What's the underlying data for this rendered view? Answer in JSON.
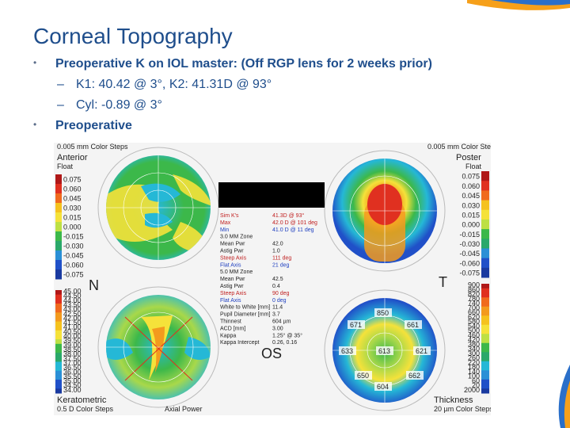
{
  "slide": {
    "title": "Corneal Topography",
    "bullets": [
      {
        "level": 1,
        "text": "Preoperative K on IOL master:  (Off RGP lens for 2 weeks prior)"
      },
      {
        "level": 2,
        "text": "K1: 40.42 @ 3°, K2: 41.31D @ 93°"
      },
      {
        "level": 2,
        "text": "Cyl: -0.89 @ 3°"
      },
      {
        "level": 1,
        "text": "Preoperative"
      }
    ]
  },
  "topography": {
    "anterior_label": "Anterior",
    "anterior_sub": "Float",
    "posterior_label": "Poster",
    "posterior_sub": "Float",
    "top_scale_header": "0.005 mm Color Steps",
    "keratometric_label": "Keratometric",
    "keratometric_sub": "0.5 D Color Steps",
    "thickness_label": "Thickness",
    "thickness_sub": "20 µm Color Steps",
    "axial_label": "Axial Power",
    "nasal_marker": "N",
    "temporal_marker": "T",
    "eye_label": "OS",
    "float_scale": [
      "0.075",
      "0.060",
      "0.045",
      "0.030",
      "0.015",
      "0.000",
      "-0.015",
      "-0.030",
      "-0.045",
      "-0.060",
      "-0.075"
    ],
    "k_scale": [
      "45.00",
      "44.50",
      "44.00",
      "43.50",
      "43.00",
      "42.50",
      "42.00",
      "41.50",
      "41.00",
      "40.50",
      "40.00",
      "39.50",
      "39.00",
      "38.50",
      "38.00",
      "37.50",
      "37.00",
      "36.50",
      "36.00",
      "35.50",
      "35.00",
      "34.50",
      "34.00"
    ],
    "thickness_scale": [
      "900",
      "860",
      "820",
      "780",
      "740",
      "700",
      "660",
      "620",
      "580",
      "540",
      "500",
      "460",
      "420",
      "380",
      "340",
      "300",
      "260",
      "220",
      "180",
      "140",
      "100",
      "60",
      "20",
      "2000"
    ],
    "thickness_values": [
      "850",
      "671",
      "661",
      "633",
      "613",
      "621",
      "650",
      "604",
      "662"
    ],
    "stats": [
      {
        "label": "Sim K's",
        "value": "41.3D @ 93°",
        "color": "#c02020"
      },
      {
        "label": "Max",
        "value": "42.0 D @ 101 deg",
        "color": "#c02020"
      },
      {
        "label": "Min",
        "value": "41.0 D @ 11 deg",
        "color": "#2040c0"
      },
      {
        "label": "3.0 MM Zone",
        "value": "",
        "color": "#222222"
      },
      {
        "label": "Mean Pwr",
        "value": "42.0",
        "color": "#222222"
      },
      {
        "label": "Astig Pwr",
        "value": "1.0",
        "color": "#222222"
      },
      {
        "label": "Steep Axis",
        "value": "111 deg",
        "color": "#c02020"
      },
      {
        "label": "Flat Axis",
        "value": "21 deg",
        "color": "#2040c0"
      },
      {
        "label": "5.0 MM Zone",
        "value": "",
        "color": "#222222"
      },
      {
        "label": "Mean Pwr",
        "value": "42.5",
        "color": "#222222"
      },
      {
        "label": "Astig Pwr",
        "value": "0.4",
        "color": "#222222"
      },
      {
        "label": "Steep Axis",
        "value": "90 deg",
        "color": "#c02020"
      },
      {
        "label": "Flat Axis",
        "value": "0 deg",
        "color": "#2040c0"
      },
      {
        "label": "White to White [mm]",
        "value": "11.4",
        "color": "#222222"
      },
      {
        "label": "Pupil Diameter [mm]",
        "value": "3.7",
        "color": "#222222"
      },
      {
        "label": "Thinnest",
        "value": "604 µm",
        "color": "#222222"
      },
      {
        "label": "ACD [mm]",
        "value": "3.00",
        "color": "#222222"
      },
      {
        "label": "Kappa",
        "value": "1.25° @ 35°",
        "color": "#222222"
      },
      {
        "label": "Kappa Intercept",
        "value": "0.26, 0.16",
        "color": "#222222"
      }
    ],
    "colors": {
      "title_blue": "#1f4e8c",
      "map_red": "#e03020",
      "map_orange": "#f39a1e",
      "map_yellow": "#f5e23a",
      "map_green": "#3cb84a",
      "map_cyan": "#25b8d6",
      "map_blue": "#2050c8"
    }
  }
}
